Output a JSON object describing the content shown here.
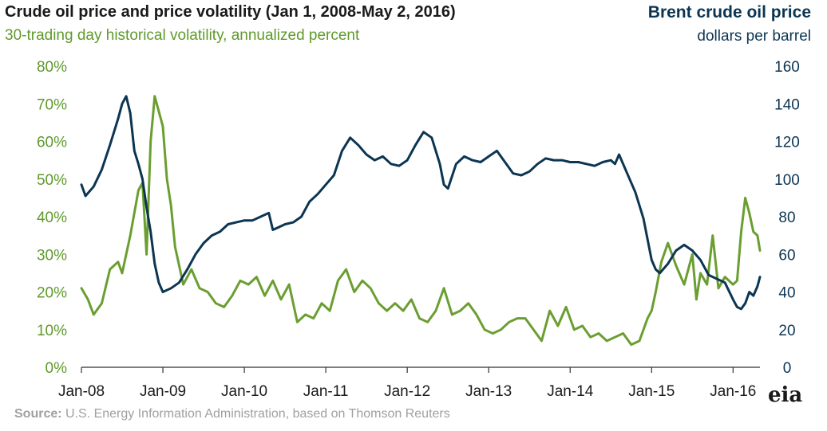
{
  "header": {
    "title": "Crude oil price and price volatility (Jan 1, 2008-May 2, 2016)",
    "left_subtitle": "30-trading day historical volatility, annualized percent",
    "right_title": "Brent crude oil price",
    "right_subtitle": "dollars per barrel"
  },
  "footer": {
    "source_label": "Source:",
    "source_text": " U.S. Energy Information Administration, based on Thomson Reuters",
    "logo_text": "eia"
  },
  "colors": {
    "volatility": "#6b9e31",
    "price": "#0c3552",
    "axis_left": "#5f9a2c",
    "axis_right": "#0c3552"
  },
  "chart_data": {
    "type": "line",
    "x_tick_labels": [
      "Jan-08",
      "Jan-09",
      "Jan-10",
      "Jan-11",
      "Jan-12",
      "Jan-13",
      "Jan-14",
      "Jan-15",
      "Jan-16"
    ],
    "x_range": [
      2008.0,
      2016.33
    ],
    "y_left": {
      "ylim": [
        0,
        80
      ],
      "tick_labels": [
        "0%",
        "10%",
        "20%",
        "30%",
        "40%",
        "50%",
        "60%",
        "70%",
        "80%"
      ]
    },
    "y_right": {
      "ylim": [
        0,
        160
      ],
      "tick_labels": [
        "0",
        "20",
        "40",
        "60",
        "80",
        "100",
        "120",
        "140",
        "160"
      ]
    },
    "grid": false,
    "series": [
      {
        "name": "30-trading day historical volatility, annualized percent",
        "axis": "left",
        "x": [
          2008.0,
          2008.08,
          2008.15,
          2008.25,
          2008.35,
          2008.45,
          2008.5,
          2008.6,
          2008.7,
          2008.75,
          2008.8,
          2008.85,
          2008.9,
          2008.95,
          2009.0,
          2009.05,
          2009.1,
          2009.15,
          2009.25,
          2009.35,
          2009.45,
          2009.55,
          2009.65,
          2009.75,
          2009.85,
          2009.95,
          2010.05,
          2010.15,
          2010.25,
          2010.35,
          2010.45,
          2010.55,
          2010.65,
          2010.75,
          2010.85,
          2010.95,
          2011.05,
          2011.15,
          2011.25,
          2011.35,
          2011.45,
          2011.55,
          2011.65,
          2011.75,
          2011.85,
          2011.95,
          2012.05,
          2012.15,
          2012.25,
          2012.35,
          2012.45,
          2012.55,
          2012.65,
          2012.75,
          2012.85,
          2012.95,
          2013.05,
          2013.15,
          2013.25,
          2013.35,
          2013.45,
          2013.55,
          2013.65,
          2013.75,
          2013.85,
          2013.95,
          2014.05,
          2014.15,
          2014.25,
          2014.35,
          2014.45,
          2014.55,
          2014.65,
          2014.75,
          2014.85,
          2014.95,
          2015.0,
          2015.05,
          2015.12,
          2015.2,
          2015.3,
          2015.4,
          2015.5,
          2015.55,
          2015.6,
          2015.68,
          2015.75,
          2015.82,
          2015.9,
          2016.0,
          2016.05,
          2016.1,
          2016.15,
          2016.2,
          2016.25,
          2016.3,
          2016.33
        ],
        "values": [
          21,
          18,
          14,
          17,
          26,
          28,
          25,
          35,
          47,
          49,
          30,
          60,
          72,
          68,
          64,
          50,
          43,
          32,
          22,
          26,
          21,
          20,
          17,
          16,
          19,
          23,
          22,
          24,
          19,
          23,
          18,
          22,
          12,
          14,
          13,
          17,
          15,
          23,
          26,
          20,
          23,
          21,
          17,
          15,
          17,
          15,
          18,
          13,
          12,
          15,
          21,
          14,
          15,
          17,
          14,
          10,
          9,
          10,
          12,
          13,
          13,
          10,
          7,
          15,
          11,
          16,
          10,
          11,
          8,
          9,
          7,
          8,
          9,
          6,
          7,
          13,
          15,
          20,
          28,
          33,
          27,
          22,
          30,
          18,
          25,
          22,
          35,
          21,
          24,
          22,
          23,
          36,
          45,
          41,
          36,
          35,
          31
        ]
      },
      {
        "name": "Brent crude oil price, dollars per barrel",
        "axis": "right",
        "x": [
          2008.0,
          2008.05,
          2008.15,
          2008.25,
          2008.35,
          2008.45,
          2008.5,
          2008.55,
          2008.6,
          2008.65,
          2008.7,
          2008.75,
          2008.8,
          2008.85,
          2008.9,
          2008.95,
          2009.0,
          2009.1,
          2009.2,
          2009.3,
          2009.4,
          2009.5,
          2009.6,
          2009.7,
          2009.8,
          2009.9,
          2010.0,
          2010.1,
          2010.2,
          2010.3,
          2010.35,
          2010.4,
          2010.5,
          2010.6,
          2010.7,
          2010.8,
          2010.9,
          2011.0,
          2011.1,
          2011.2,
          2011.3,
          2011.4,
          2011.5,
          2011.6,
          2011.7,
          2011.8,
          2011.9,
          2012.0,
          2012.1,
          2012.2,
          2012.3,
          2012.4,
          2012.45,
          2012.5,
          2012.6,
          2012.7,
          2012.8,
          2012.9,
          2013.0,
          2013.1,
          2013.2,
          2013.3,
          2013.4,
          2013.5,
          2013.6,
          2013.7,
          2013.8,
          2013.9,
          2014.0,
          2014.1,
          2014.2,
          2014.3,
          2014.4,
          2014.5,
          2014.55,
          2014.6,
          2014.7,
          2014.8,
          2014.85,
          2014.9,
          2014.95,
          2015.0,
          2015.05,
          2015.1,
          2015.2,
          2015.3,
          2015.4,
          2015.5,
          2015.6,
          2015.7,
          2015.8,
          2015.9,
          2016.0,
          2016.05,
          2016.1,
          2016.15,
          2016.2,
          2016.25,
          2016.3,
          2016.33
        ],
        "values": [
          97,
          91,
          96,
          105,
          118,
          132,
          140,
          144,
          135,
          115,
          108,
          100,
          85,
          72,
          55,
          45,
          40,
          42,
          45,
          52,
          60,
          66,
          70,
          72,
          76,
          77,
          78,
          78,
          80,
          82,
          73,
          74,
          76,
          77,
          80,
          88,
          92,
          97,
          102,
          115,
          122,
          118,
          113,
          110,
          112,
          108,
          107,
          110,
          118,
          125,
          122,
          108,
          97,
          95,
          108,
          112,
          110,
          109,
          112,
          115,
          109,
          103,
          102,
          104,
          108,
          111,
          110,
          110,
          109,
          109,
          108,
          107,
          109,
          110,
          108,
          113,
          103,
          93,
          86,
          79,
          68,
          57,
          52,
          50,
          55,
          62,
          65,
          62,
          57,
          49,
          47,
          45,
          36,
          32,
          31,
          34,
          40,
          38,
          43,
          48
        ]
      }
    ]
  }
}
